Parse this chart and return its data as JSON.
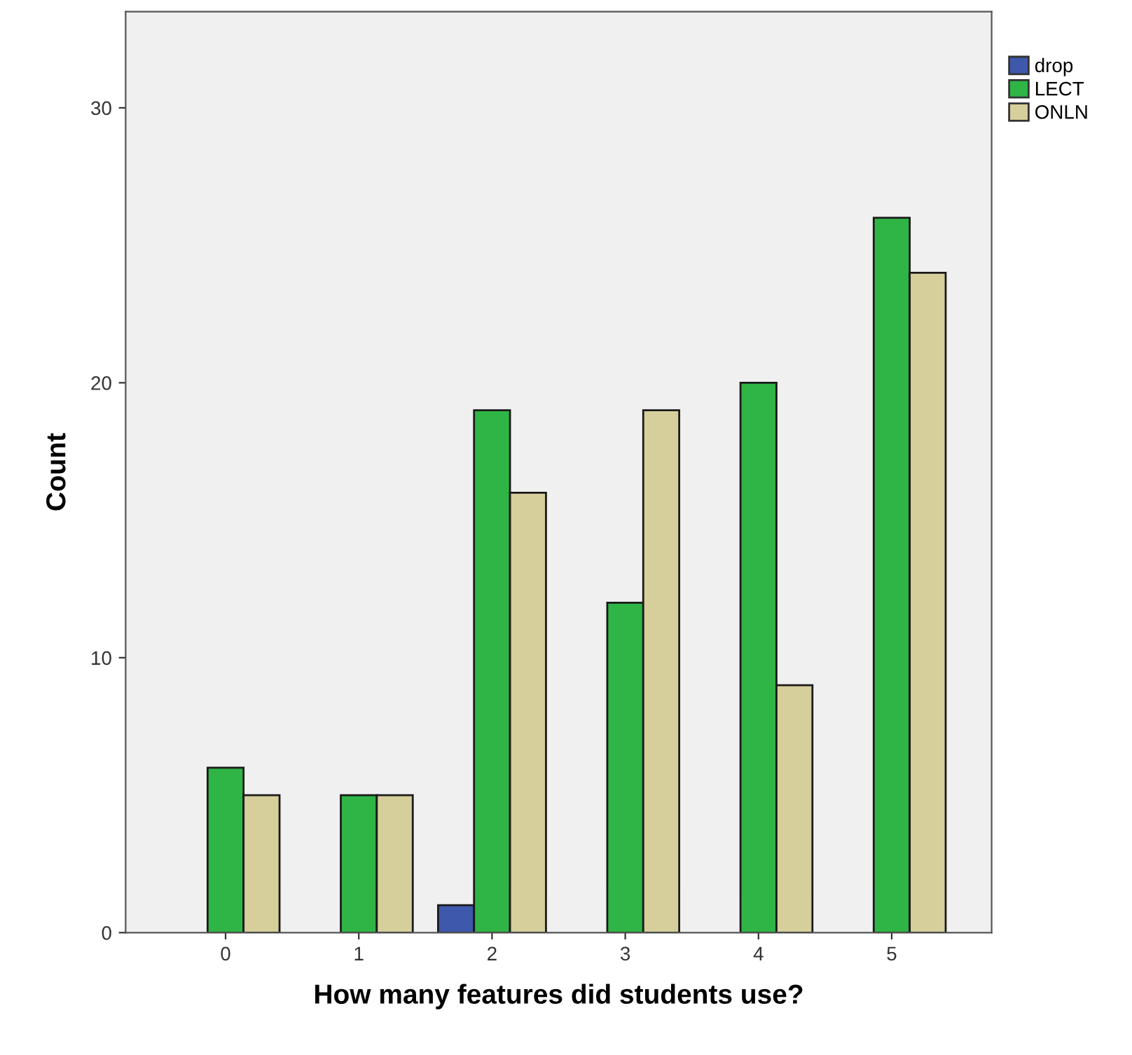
{
  "chart_data": {
    "type": "bar",
    "xlabel": "How many features did students use?",
    "ylabel": "Count",
    "categories": [
      "0",
      "1",
      "2",
      "3",
      "4",
      "5"
    ],
    "series": [
      {
        "name": "drop",
        "color": "#3e58ac",
        "values": [
          null,
          null,
          1,
          null,
          null,
          null
        ]
      },
      {
        "name": "LECT",
        "color": "#2fb545",
        "values": [
          6,
          5,
          19,
          12,
          20,
          26
        ]
      },
      {
        "name": "ONLN",
        "color": "#d6cf9c",
        "values": [
          5,
          5,
          16,
          19,
          9,
          24
        ]
      }
    ],
    "ylim": [
      0,
      33.5
    ],
    "yticks": [
      0,
      10,
      20,
      30
    ],
    "grid": false,
    "legend": "top right"
  }
}
